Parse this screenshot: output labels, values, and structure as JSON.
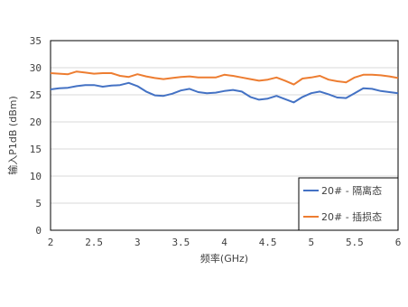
{
  "chart_data": {
    "type": "line",
    "xlabel": "频率(GHz)",
    "ylabel": "输入P1dB (dBm)",
    "xlim": [
      2,
      6
    ],
    "ylim": [
      0,
      35
    ],
    "x_ticks": [
      "2",
      "2.5",
      "3",
      "3.5",
      "4",
      "4.5",
      "5",
      "5.5",
      "6"
    ],
    "y_ticks": [
      "0",
      "5",
      "10",
      "15",
      "20",
      "25",
      "30",
      "35"
    ],
    "grid": "horizontal",
    "legend_position": "bottom-right",
    "x": [
      2.0,
      2.1,
      2.2,
      2.3,
      2.4,
      2.5,
      2.6,
      2.7,
      2.8,
      2.9,
      3.0,
      3.1,
      3.2,
      3.3,
      3.4,
      3.5,
      3.6,
      3.7,
      3.8,
      3.9,
      4.0,
      4.1,
      4.2,
      4.3,
      4.4,
      4.5,
      4.6,
      4.7,
      4.8,
      4.9,
      5.0,
      5.1,
      5.2,
      5.3,
      5.4,
      5.5,
      5.6,
      5.7,
      5.8,
      5.9,
      6.0
    ],
    "series": [
      {
        "name": "20# - 隔离态",
        "color": "#4472C4",
        "values": [
          26.0,
          26.2,
          26.3,
          26.6,
          26.8,
          26.8,
          26.5,
          26.7,
          26.8,
          27.2,
          26.6,
          25.6,
          24.9,
          24.8,
          25.2,
          25.8,
          26.1,
          25.5,
          25.3,
          25.4,
          25.7,
          25.9,
          25.6,
          24.6,
          24.1,
          24.3,
          24.8,
          24.2,
          23.6,
          24.6,
          25.3,
          25.6,
          25.1,
          24.5,
          24.4,
          25.3,
          26.2,
          26.1,
          25.7,
          25.5,
          25.3
        ]
      },
      {
        "name": "20# - 插损态",
        "color": "#ED7D31",
        "values": [
          29.0,
          28.9,
          28.8,
          29.3,
          29.1,
          28.9,
          29.0,
          29.0,
          28.5,
          28.3,
          28.8,
          28.4,
          28.1,
          27.9,
          28.1,
          28.3,
          28.4,
          28.2,
          28.2,
          28.2,
          28.7,
          28.5,
          28.2,
          27.9,
          27.6,
          27.8,
          28.2,
          27.6,
          26.9,
          28.0,
          28.2,
          28.5,
          27.8,
          27.5,
          27.3,
          28.2,
          28.7,
          28.7,
          28.6,
          28.4,
          28.1
        ]
      }
    ]
  }
}
